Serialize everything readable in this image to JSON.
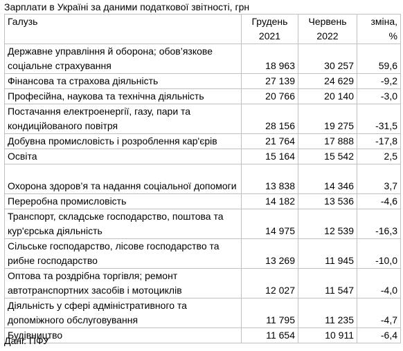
{
  "title": "Зарплати в Україні за даними податкової звітності, грн",
  "header": {
    "industry": "Галузь",
    "col1_line1": "Грудень",
    "col1_line2": "2021",
    "col2_line1": "Червень",
    "col2_line2": "2022",
    "col3_line1": "зміна,",
    "col3_line2": "%"
  },
  "rows": [
    {
      "industry": "Державне управління й оборона; обов’язкове соціальне страхування",
      "dec2021": "18 963",
      "jun2022": "30 257",
      "change": "59,6"
    },
    {
      "industry": "Фінансова та страхова діяльність",
      "dec2021": "27 139",
      "jun2022": "24 629",
      "change": "-9,2"
    },
    {
      "industry": "Професійна, наукова та технічна діяльність",
      "dec2021": "20 766",
      "jun2022": "20 140",
      "change": "-3,0"
    },
    {
      "industry": "Постачання електроенергії, газу, пари та кондиційованого повітря",
      "dec2021": "28 156",
      "jun2022": "19 275",
      "change": "-31,5"
    },
    {
      "industry": "Добувна промисловість і розроблення кар'єрів",
      "dec2021": "21 764",
      "jun2022": "17 888",
      "change": "-17,8"
    },
    {
      "industry": "Освіта",
      "dec2021": "15 164",
      "jun2022": "15 542",
      "change": "2,5"
    },
    {
      "industry": "Охорона здоров’я та надання соціальної допомоги",
      "dec2021": "13 838",
      "jun2022": "14 346",
      "change": "3,7"
    },
    {
      "industry": "Переробна промисловість",
      "dec2021": "14 182",
      "jun2022": "13 536",
      "change": "-4,6"
    },
    {
      "industry": "Транспорт, складське господарство, поштова та кур'єрська діяльність",
      "dec2021": "14 975",
      "jun2022": "12 539",
      "change": "-16,3"
    },
    {
      "industry": "Сільське господарство, лісове господарство та рибне господарство",
      "dec2021": "13 269",
      "jun2022": "11 945",
      "change": "-10,0"
    },
    {
      "industry": "Оптова та роздрібна торгівля; ремонт автотранспортних засобів і мотоциклів",
      "dec2021": "12 027",
      "jun2022": "11 547",
      "change": "-4,0"
    },
    {
      "industry": "Діяльність у сфері адміністративного та допоміжного обслуговування",
      "dec2021": "11 795",
      "jun2022": "11 235",
      "change": "-4,7"
    },
    {
      "industry": "Будівництво",
      "dec2021": "11 654",
      "jun2022": "10 911",
      "change": "-6,4"
    }
  ],
  "source": "Дані: ПФУ"
}
